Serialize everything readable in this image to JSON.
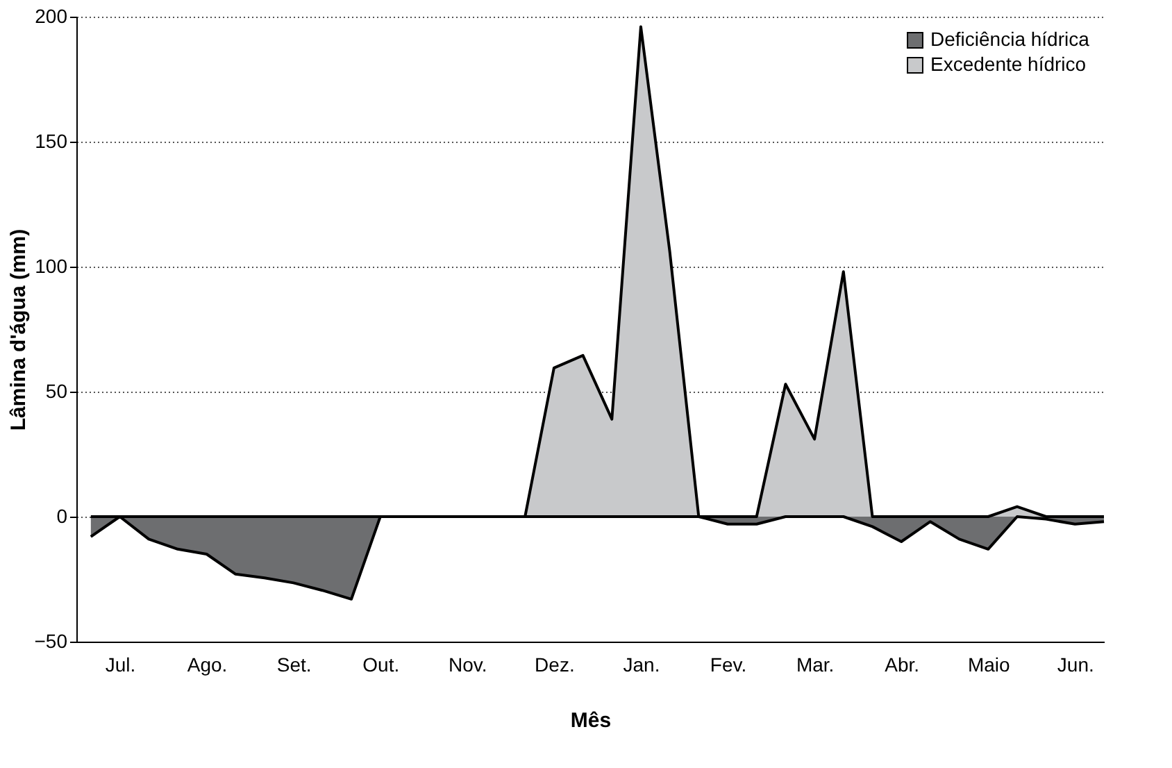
{
  "chart_data": {
    "type": "area",
    "xlabel": "Mês",
    "ylabel": "Lâmina d'água (mm)",
    "categories": [
      null,
      "Jul.",
      null,
      null,
      "Ago.",
      null,
      null,
      "Set.",
      null,
      null,
      "Out.",
      null,
      null,
      "Nov.",
      null,
      null,
      "Dez.",
      null,
      null,
      "Jan.",
      null,
      null,
      "Fev.",
      null,
      null,
      "Mar.",
      null,
      null,
      "Abr.",
      null,
      null,
      "Maio",
      null,
      null,
      "Jun.",
      null
    ],
    "series": [
      {
        "name": "Deficiência hídrica",
        "color": "#6d6e70",
        "values": [
          -8,
          0,
          -9,
          -13,
          -15,
          -23,
          -24.5,
          -26.5,
          -29.5,
          -33,
          0,
          0,
          0,
          0,
          0,
          0,
          0,
          0,
          0,
          0,
          0,
          0,
          -3,
          -3,
          0,
          0,
          0,
          -4,
          -10,
          -2,
          -9,
          -13,
          0,
          -1,
          -3,
          -2
        ]
      },
      {
        "name": "Excedente hídrico",
        "color": "#c8c9cb",
        "values": [
          0,
          0,
          0,
          0,
          0,
          0,
          0,
          0,
          0,
          0,
          0,
          0,
          0,
          0,
          0,
          0,
          59.5,
          64.5,
          39,
          196,
          106,
          0,
          0,
          0,
          53,
          31,
          98,
          0,
          0,
          0,
          0,
          0,
          4,
          0,
          0,
          0
        ]
      }
    ],
    "ylim": [
      -50,
      200
    ],
    "yticks": [
      -50,
      0,
      50,
      100,
      150,
      200
    ],
    "grid": "y",
    "legend": "top right"
  }
}
